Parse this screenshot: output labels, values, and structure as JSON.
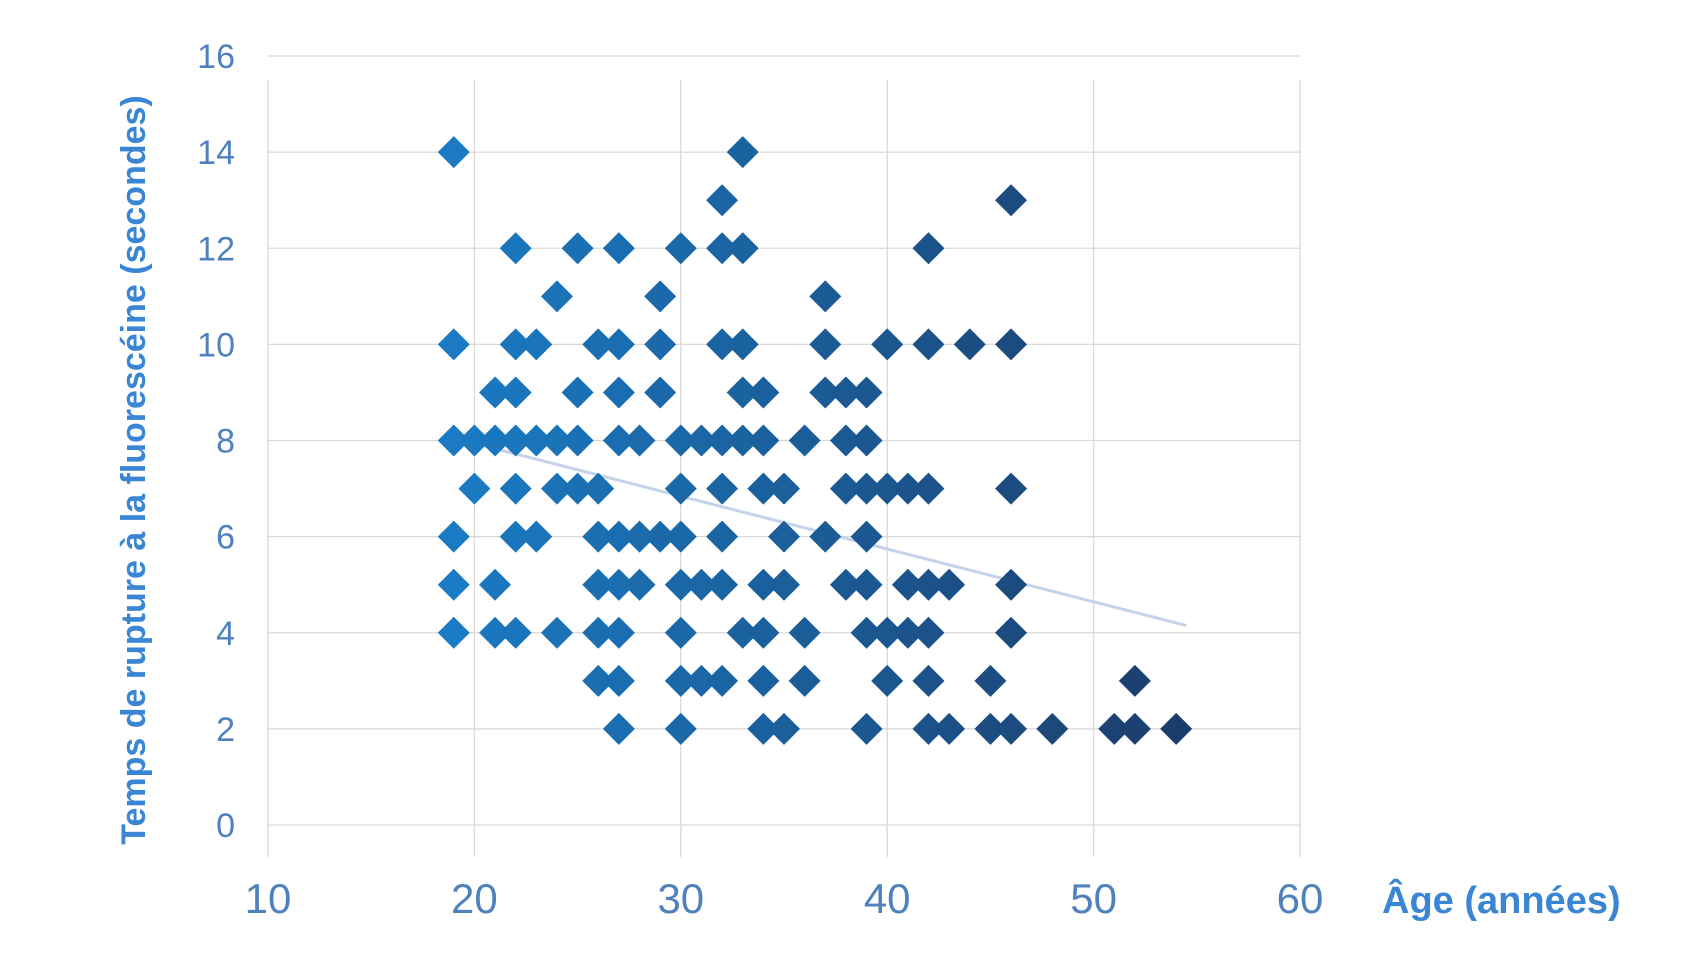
{
  "chart_data": {
    "type": "scatter",
    "title": "",
    "xlabel": "Âge (années)",
    "ylabel": "Temps de rupture à la fluorescéine (secondes)",
    "xlim": [
      10,
      60
    ],
    "ylim": [
      0,
      16
    ],
    "x_ticks": [
      10,
      20,
      30,
      40,
      50,
      60
    ],
    "y_ticks": [
      0,
      2,
      4,
      6,
      8,
      10,
      12,
      14,
      16
    ],
    "grid": true,
    "legend": "none",
    "colors": {
      "young": "#1a7bc4",
      "old": "#1c3d6b",
      "trendline": "#c5d3ea"
    },
    "trendline": {
      "x": [
        19,
        54.5
      ],
      "y": [
        8.05,
        4.15
      ]
    },
    "points": [
      [
        19,
        14
      ],
      [
        33,
        14
      ],
      [
        32,
        13
      ],
      [
        46,
        13
      ],
      [
        22,
        12
      ],
      [
        25,
        12
      ],
      [
        27,
        12
      ],
      [
        30,
        12
      ],
      [
        32,
        12
      ],
      [
        33,
        12
      ],
      [
        42,
        12
      ],
      [
        24,
        11
      ],
      [
        29,
        11
      ],
      [
        37,
        11
      ],
      [
        19,
        10
      ],
      [
        22,
        10
      ],
      [
        23,
        10
      ],
      [
        26,
        10
      ],
      [
        27,
        10
      ],
      [
        29,
        10
      ],
      [
        32,
        10
      ],
      [
        33,
        10
      ],
      [
        37,
        10
      ],
      [
        40,
        10
      ],
      [
        42,
        10
      ],
      [
        44,
        10
      ],
      [
        46,
        10
      ],
      [
        21,
        9
      ],
      [
        22,
        9
      ],
      [
        25,
        9
      ],
      [
        27,
        9
      ],
      [
        29,
        9
      ],
      [
        33,
        9
      ],
      [
        34,
        9
      ],
      [
        37,
        9
      ],
      [
        38,
        9
      ],
      [
        39,
        9
      ],
      [
        19,
        8
      ],
      [
        20,
        8
      ],
      [
        21,
        8
      ],
      [
        22,
        8
      ],
      [
        23,
        8
      ],
      [
        24,
        8
      ],
      [
        25,
        8
      ],
      [
        27,
        8
      ],
      [
        28,
        8
      ],
      [
        30,
        8
      ],
      [
        31,
        8
      ],
      [
        32,
        8
      ],
      [
        33,
        8
      ],
      [
        34,
        8
      ],
      [
        36,
        8
      ],
      [
        38,
        8
      ],
      [
        39,
        8
      ],
      [
        20,
        7
      ],
      [
        22,
        7
      ],
      [
        24,
        7
      ],
      [
        25,
        7
      ],
      [
        26,
        7
      ],
      [
        30,
        7
      ],
      [
        32,
        7
      ],
      [
        34,
        7
      ],
      [
        35,
        7
      ],
      [
        38,
        7
      ],
      [
        39,
        7
      ],
      [
        40,
        7
      ],
      [
        41,
        7
      ],
      [
        42,
        7
      ],
      [
        46,
        7
      ],
      [
        19,
        6
      ],
      [
        22,
        6
      ],
      [
        23,
        6
      ],
      [
        26,
        6
      ],
      [
        27,
        6
      ],
      [
        28,
        6
      ],
      [
        29,
        6
      ],
      [
        30,
        6
      ],
      [
        32,
        6
      ],
      [
        35,
        6
      ],
      [
        37,
        6
      ],
      [
        39,
        6
      ],
      [
        19,
        5
      ],
      [
        21,
        5
      ],
      [
        26,
        5
      ],
      [
        27,
        5
      ],
      [
        28,
        5
      ],
      [
        30,
        5
      ],
      [
        31,
        5
      ],
      [
        32,
        5
      ],
      [
        34,
        5
      ],
      [
        35,
        5
      ],
      [
        38,
        5
      ],
      [
        39,
        5
      ],
      [
        41,
        5
      ],
      [
        42,
        5
      ],
      [
        43,
        5
      ],
      [
        46,
        5
      ],
      [
        19,
        4
      ],
      [
        21,
        4
      ],
      [
        22,
        4
      ],
      [
        24,
        4
      ],
      [
        26,
        4
      ],
      [
        27,
        4
      ],
      [
        30,
        4
      ],
      [
        33,
        4
      ],
      [
        34,
        4
      ],
      [
        36,
        4
      ],
      [
        39,
        4
      ],
      [
        40,
        4
      ],
      [
        41,
        4
      ],
      [
        42,
        4
      ],
      [
        46,
        4
      ],
      [
        26,
        3
      ],
      [
        27,
        3
      ],
      [
        30,
        3
      ],
      [
        31,
        3
      ],
      [
        32,
        3
      ],
      [
        34,
        3
      ],
      [
        36,
        3
      ],
      [
        40,
        3
      ],
      [
        42,
        3
      ],
      [
        45,
        3
      ],
      [
        52,
        3
      ],
      [
        27,
        2
      ],
      [
        30,
        2
      ],
      [
        34,
        2
      ],
      [
        35,
        2
      ],
      [
        39,
        2
      ],
      [
        42,
        2
      ],
      [
        43,
        2
      ],
      [
        45,
        2
      ],
      [
        46,
        2
      ],
      [
        48,
        2
      ],
      [
        51,
        2
      ],
      [
        52,
        2
      ],
      [
        54,
        2
      ]
    ]
  }
}
